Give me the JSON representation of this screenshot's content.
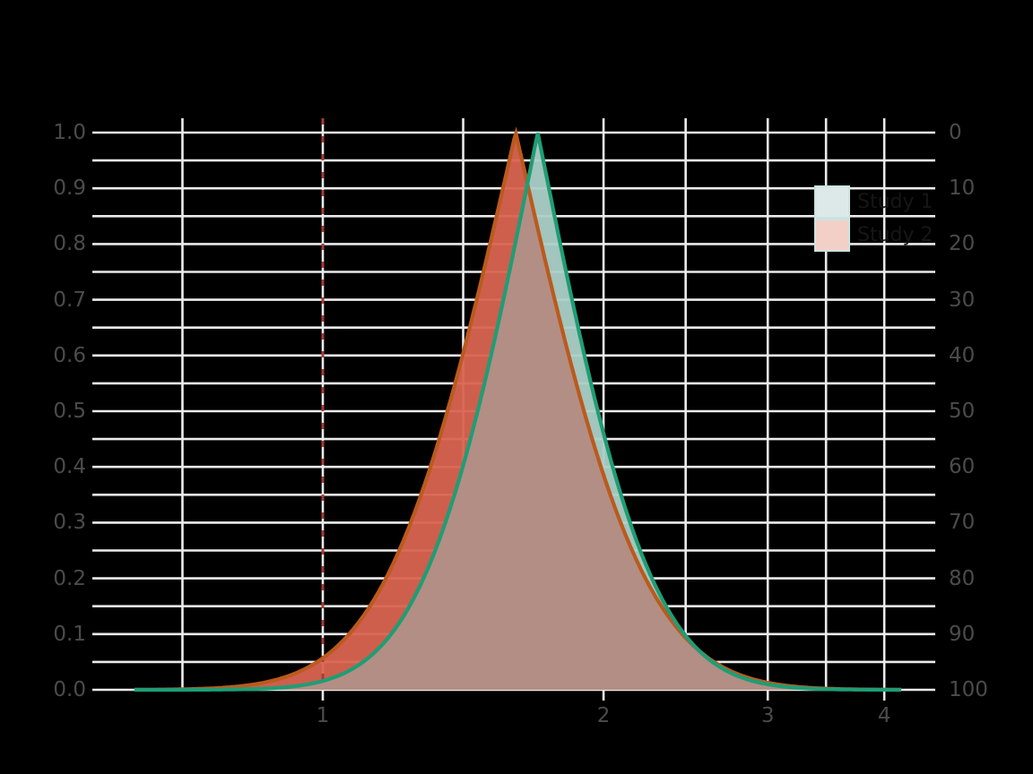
{
  "figure": {
    "background_color": "#000000",
    "axis_text_color": "#4b4b4b",
    "grid_color": "#ebebeb"
  },
  "chart_data": {
    "type": "area",
    "subtype": "p-value-function-confidence-curves",
    "title": "",
    "xlabel": "",
    "ylabel_left": "",
    "ylabel_right": "",
    "x_axis": {
      "scale": "log10",
      "tick_labels": [
        "1",
        "2",
        "3",
        "4"
      ],
      "tick_values": [
        1,
        2,
        3,
        4
      ],
      "minor_tick_values": [
        0.7071,
        1.4142,
        2.4495,
        3.4641
      ],
      "data_range": [
        0.628,
        4.17
      ]
    },
    "y_axis_left": {
      "tick_labels": [
        "0.0",
        "0.1",
        "0.2",
        "0.3",
        "0.4",
        "0.5",
        "0.6",
        "0.7",
        "0.8",
        "0.9",
        "1.0"
      ],
      "tick_values": [
        0,
        0.1,
        0.2,
        0.3,
        0.4,
        0.5,
        0.6,
        0.7,
        0.8,
        0.9,
        1.0
      ],
      "minor_step": 0.05,
      "range": [
        0,
        1
      ]
    },
    "y_axis_right": {
      "tick_labels": [
        "0",
        "10",
        "20",
        "30",
        "40",
        "50",
        "60",
        "70",
        "80",
        "90",
        "100"
      ],
      "tick_values": [
        0,
        10,
        20,
        30,
        40,
        50,
        60,
        70,
        80,
        90,
        100
      ],
      "meaning": "confidence level = 100 * (1 - p)"
    },
    "reference_line": {
      "x": 1,
      "style": "dashed",
      "color": "#a63c36"
    },
    "grid": {
      "on": true,
      "color": "#ebebeb"
    },
    "series": [
      {
        "name": "Study 1",
        "estimate": 1.7,
        "se_log": 0.22,
        "ci_95": [
          1.1,
          2.62
        ],
        "line_color": "#1f9d75",
        "fill_color": "#abd0c7",
        "points": [
          {
            "p": 1.0,
            "lower": 1.7,
            "upper": 1.7
          },
          {
            "p": 0.8,
            "lower": 1.61,
            "upper": 1.8
          },
          {
            "p": 0.5,
            "lower": 1.47,
            "upper": 1.97
          },
          {
            "p": 0.2,
            "lower": 1.28,
            "upper": 2.25
          },
          {
            "p": 0.1,
            "lower": 1.18,
            "upper": 2.44
          },
          {
            "p": 0.05,
            "lower": 1.1,
            "upper": 2.62
          },
          {
            "p": 0.01,
            "lower": 0.96,
            "upper": 3.0
          }
        ]
      },
      {
        "name": "Study 2",
        "estimate": 1.61,
        "se_log": 0.25,
        "ci_95": [
          0.99,
          2.63
        ],
        "line_color": "#bb5a1d",
        "fill_color": "#d96450",
        "points": [
          {
            "p": 1.0,
            "lower": 1.61,
            "upper": 1.61
          },
          {
            "p": 0.8,
            "lower": 1.51,
            "upper": 1.72
          },
          {
            "p": 0.5,
            "lower": 1.36,
            "upper": 1.91
          },
          {
            "p": 0.2,
            "lower": 1.17,
            "upper": 2.22
          },
          {
            "p": 0.1,
            "lower": 1.06,
            "upper": 2.44
          },
          {
            "p": 0.05,
            "lower": 0.99,
            "upper": 2.63
          },
          {
            "p": 0.01,
            "lower": 0.85,
            "upper": 3.06
          }
        ]
      }
    ],
    "overlap_fill_color": "#b19086"
  },
  "legend": {
    "position": "top-right",
    "entries": [
      {
        "label": "Study 1",
        "key_fill": "#dde9e8"
      },
      {
        "label": "Study 2",
        "key_fill": "#f2d0c8"
      }
    ],
    "key_border_color": "#cde3e0",
    "text_color": "#161616"
  }
}
